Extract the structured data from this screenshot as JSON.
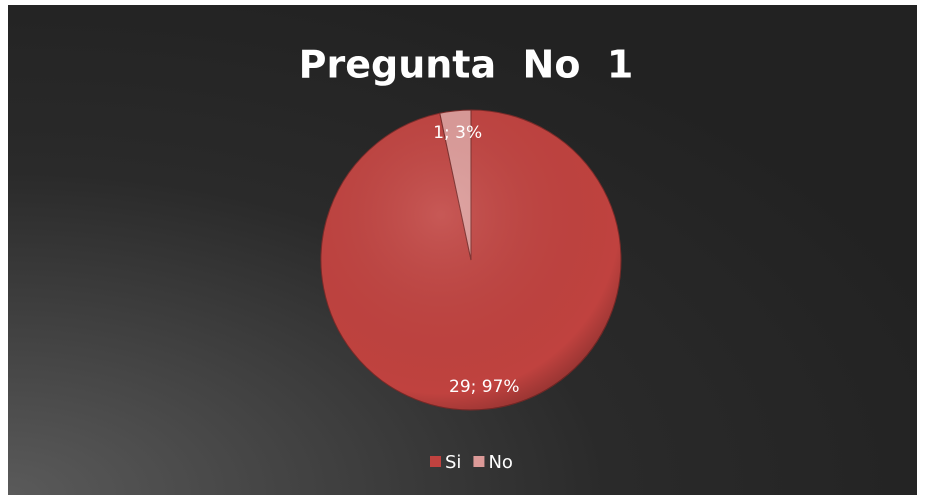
{
  "chart_data": {
    "type": "pie",
    "title": "Pregunta  No  1",
    "categories": [
      "Si",
      "No"
    ],
    "values": [
      29,
      1
    ],
    "value_labels": [
      "29; 97%",
      "1; 3%"
    ],
    "colors": [
      "#c0423f",
      "#dc9a98"
    ],
    "legend": "bottom"
  }
}
